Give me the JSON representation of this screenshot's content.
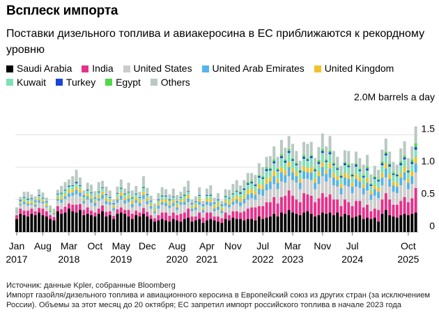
{
  "chart_data": {
    "type": "bar",
    "stacked": true,
    "title": "Всплеск импорта",
    "subtitle": "Поставки дизельного топлива и авиакеросина в ЕС приближаются к рекордному уровню",
    "unit_label": "2.0M barrels a day",
    "ylim": [
      0,
      2.0
    ],
    "yticks": [
      "0",
      "0.5",
      "1.0",
      "1.5"
    ],
    "xticks": [
      {
        "label": "Jan",
        "year": "2017",
        "idx": 0
      },
      {
        "label": "Aug",
        "year": "",
        "idx": 7
      },
      {
        "label": "Mar",
        "year": "2018",
        "idx": 14
      },
      {
        "label": "Oct",
        "year": "",
        "idx": 21
      },
      {
        "label": "May",
        "year": "2019",
        "idx": 28
      },
      {
        "label": "Dec",
        "year": "",
        "idx": 35
      },
      {
        "label": "Aug",
        "year": "2020",
        "idx": 43
      },
      {
        "label": "Apr",
        "year": "2021",
        "idx": 51
      },
      {
        "label": "Nov",
        "year": "",
        "idx": 58
      },
      {
        "label": "Jul",
        "year": "2022",
        "idx": 66
      },
      {
        "label": "Mar",
        "year": "2023",
        "idx": 74
      },
      {
        "label": "Nov",
        "year": "",
        "idx": 82
      },
      {
        "label": "Jul",
        "year": "2024",
        "idx": 90
      },
      {
        "label": "Oct",
        "year": "2025",
        "idx": 105
      }
    ],
    "grid": true,
    "legend_position": "top",
    "series": [
      {
        "name": "Saudi Arabia",
        "color": "#000000",
        "values": [
          0.2,
          0.28,
          0.26,
          0.24,
          0.28,
          0.26,
          0.3,
          0.26,
          0.24,
          0.2,
          0.18,
          0.32,
          0.28,
          0.3,
          0.36,
          0.32,
          0.3,
          0.34,
          0.26,
          0.28,
          0.26,
          0.24,
          0.28,
          0.32,
          0.24,
          0.26,
          0.2,
          0.28,
          0.3,
          0.28,
          0.24,
          0.2,
          0.26,
          0.24,
          0.28,
          0.24,
          0.2,
          0.16,
          0.18,
          0.2,
          0.18,
          0.16,
          0.2,
          0.18,
          0.16,
          0.2,
          0.22,
          0.16,
          0.18,
          0.2,
          0.14,
          0.18,
          0.2,
          0.18,
          0.16,
          0.14,
          0.2,
          0.18,
          0.22,
          0.2,
          0.2,
          0.18,
          0.2,
          0.2,
          0.18,
          0.24,
          0.2,
          0.22,
          0.24,
          0.28,
          0.24,
          0.3,
          0.28,
          0.34,
          0.3,
          0.28,
          0.26,
          0.3,
          0.32,
          0.28,
          0.24,
          0.26,
          0.3,
          0.28,
          0.3,
          0.26,
          0.3,
          0.24,
          0.28,
          0.26,
          0.22,
          0.24,
          0.26,
          0.2,
          0.22,
          0.2,
          0.22,
          0.16,
          0.28,
          0.34,
          0.26,
          0.24,
          0.22,
          0.26,
          0.28,
          0.26,
          0.28,
          0.3
        ]
      },
      {
        "name": "India",
        "color": "#e6318b",
        "values": [
          0.06,
          0.08,
          0.07,
          0.09,
          0.08,
          0.06,
          0.07,
          0.1,
          0.08,
          0.06,
          0.05,
          0.08,
          0.07,
          0.09,
          0.08,
          0.1,
          0.12,
          0.09,
          0.08,
          0.1,
          0.07,
          0.06,
          0.08,
          0.09,
          0.07,
          0.06,
          0.05,
          0.07,
          0.08,
          0.06,
          0.1,
          0.08,
          0.07,
          0.06,
          0.09,
          0.07,
          0.06,
          0.05,
          0.08,
          0.1,
          0.12,
          0.09,
          0.1,
          0.08,
          0.12,
          0.1,
          0.14,
          0.08,
          0.06,
          0.1,
          0.08,
          0.12,
          0.1,
          0.06,
          0.08,
          0.07,
          0.1,
          0.08,
          0.1,
          0.12,
          0.1,
          0.14,
          0.16,
          0.18,
          0.2,
          0.16,
          0.2,
          0.24,
          0.22,
          0.26,
          0.2,
          0.24,
          0.28,
          0.3,
          0.26,
          0.22,
          0.2,
          0.3,
          0.26,
          0.28,
          0.22,
          0.26,
          0.3,
          0.26,
          0.28,
          0.24,
          0.2,
          0.16,
          0.22,
          0.2,
          0.18,
          0.24,
          0.22,
          0.18,
          0.2,
          0.12,
          0.14,
          0.18,
          0.22,
          0.26,
          0.24,
          0.18,
          0.2,
          0.22,
          0.26,
          0.2,
          0.24,
          0.38
        ]
      },
      {
        "name": "United States",
        "color": "#cccccc",
        "values": [
          0.04,
          0.05,
          0.1,
          0.08,
          0.06,
          0.07,
          0.08,
          0.08,
          0.06,
          0.05,
          0.04,
          0.08,
          0.1,
          0.12,
          0.1,
          0.14,
          0.16,
          0.12,
          0.1,
          0.12,
          0.12,
          0.1,
          0.12,
          0.1,
          0.12,
          0.1,
          0.08,
          0.1,
          0.12,
          0.1,
          0.12,
          0.1,
          0.12,
          0.1,
          0.14,
          0.12,
          0.1,
          0.08,
          0.1,
          0.12,
          0.1,
          0.12,
          0.1,
          0.08,
          0.14,
          0.12,
          0.1,
          0.08,
          0.1,
          0.12,
          0.08,
          0.12,
          0.1,
          0.08,
          0.1,
          0.08,
          0.1,
          0.12,
          0.1,
          0.12,
          0.1,
          0.12,
          0.14,
          0.14,
          0.12,
          0.18,
          0.16,
          0.18,
          0.2,
          0.2,
          0.22,
          0.24,
          0.2,
          0.22,
          0.24,
          0.26,
          0.2,
          0.22,
          0.24,
          0.24,
          0.2,
          0.22,
          0.26,
          0.24,
          0.26,
          0.22,
          0.2,
          0.18,
          0.22,
          0.24,
          0.2,
          0.22,
          0.2,
          0.2,
          0.22,
          0.18,
          0.2,
          0.18,
          0.22,
          0.24,
          0.2,
          0.2,
          0.18,
          0.24,
          0.26,
          0.2,
          0.22,
          0.24
        ]
      },
      {
        "name": "United Arab Emirates",
        "color": "#56b4e9",
        "values": [
          0.01,
          0.02,
          0.04,
          0.03,
          0.02,
          0.03,
          0.04,
          0.03,
          0.02,
          0.02,
          0.02,
          0.03,
          0.05,
          0.04,
          0.06,
          0.05,
          0.07,
          0.06,
          0.04,
          0.05,
          0.06,
          0.05,
          0.04,
          0.06,
          0.05,
          0.04,
          0.04,
          0.05,
          0.06,
          0.05,
          0.06,
          0.05,
          0.04,
          0.05,
          0.06,
          0.05,
          0.04,
          0.03,
          0.05,
          0.04,
          0.05,
          0.04,
          0.05,
          0.04,
          0.04,
          0.05,
          0.06,
          0.04,
          0.04,
          0.05,
          0.04,
          0.05,
          0.06,
          0.04,
          0.05,
          0.04,
          0.05,
          0.04,
          0.05,
          0.06,
          0.06,
          0.07,
          0.08,
          0.08,
          0.07,
          0.09,
          0.1,
          0.1,
          0.12,
          0.12,
          0.1,
          0.14,
          0.12,
          0.14,
          0.12,
          0.1,
          0.1,
          0.12,
          0.1,
          0.12,
          0.1,
          0.12,
          0.14,
          0.12,
          0.14,
          0.12,
          0.1,
          0.1,
          0.12,
          0.12,
          0.1,
          0.12,
          0.1,
          0.1,
          0.12,
          0.08,
          0.1,
          0.1,
          0.12,
          0.14,
          0.12,
          0.1,
          0.1,
          0.12,
          0.12,
          0.1,
          0.12,
          0.14
        ]
      },
      {
        "name": "United Kingdom",
        "color": "#f2c12e",
        "values": [
          0.01,
          0.02,
          0.02,
          0.03,
          0.03,
          0.02,
          0.03,
          0.02,
          0.03,
          0.02,
          0.02,
          0.03,
          0.04,
          0.03,
          0.05,
          0.04,
          0.04,
          0.05,
          0.03,
          0.04,
          0.04,
          0.03,
          0.04,
          0.05,
          0.04,
          0.03,
          0.03,
          0.04,
          0.05,
          0.04,
          0.04,
          0.05,
          0.04,
          0.04,
          0.05,
          0.04,
          0.03,
          0.03,
          0.04,
          0.04,
          0.05,
          0.04,
          0.04,
          0.04,
          0.03,
          0.04,
          0.05,
          0.03,
          0.04,
          0.04,
          0.03,
          0.04,
          0.05,
          0.04,
          0.05,
          0.04,
          0.04,
          0.05,
          0.05,
          0.06,
          0.06,
          0.06,
          0.07,
          0.06,
          0.06,
          0.07,
          0.06,
          0.08,
          0.07,
          0.08,
          0.06,
          0.08,
          0.07,
          0.08,
          0.06,
          0.07,
          0.06,
          0.07,
          0.06,
          0.08,
          0.06,
          0.07,
          0.08,
          0.06,
          0.08,
          0.07,
          0.06,
          0.06,
          0.07,
          0.06,
          0.06,
          0.07,
          0.06,
          0.06,
          0.07,
          0.05,
          0.06,
          0.06,
          0.07,
          0.08,
          0.07,
          0.06,
          0.06,
          0.07,
          0.08,
          0.06,
          0.07,
          0.09
        ]
      },
      {
        "name": "Kuwait",
        "color": "#7ee0b8",
        "values": [
          0.02,
          0.03,
          0.04,
          0.03,
          0.04,
          0.03,
          0.04,
          0.03,
          0.03,
          0.02,
          0.02,
          0.04,
          0.05,
          0.06,
          0.05,
          0.06,
          0.06,
          0.05,
          0.04,
          0.05,
          0.05,
          0.04,
          0.05,
          0.06,
          0.05,
          0.04,
          0.03,
          0.05,
          0.06,
          0.05,
          0.05,
          0.04,
          0.05,
          0.04,
          0.06,
          0.05,
          0.04,
          0.03,
          0.04,
          0.05,
          0.05,
          0.04,
          0.05,
          0.04,
          0.04,
          0.05,
          0.05,
          0.04,
          0.04,
          0.05,
          0.04,
          0.05,
          0.05,
          0.04,
          0.05,
          0.04,
          0.05,
          0.05,
          0.06,
          0.06,
          0.07,
          0.08,
          0.08,
          0.09,
          0.08,
          0.1,
          0.1,
          0.12,
          0.1,
          0.12,
          0.12,
          0.14,
          0.12,
          0.14,
          0.12,
          0.1,
          0.1,
          0.12,
          0.12,
          0.14,
          0.12,
          0.12,
          0.14,
          0.12,
          0.14,
          0.12,
          0.1,
          0.1,
          0.12,
          0.12,
          0.1,
          0.12,
          0.1,
          0.1,
          0.12,
          0.08,
          0.1,
          0.1,
          0.12,
          0.12,
          0.12,
          0.1,
          0.1,
          0.12,
          0.12,
          0.1,
          0.12,
          0.12
        ]
      },
      {
        "name": "Turkey",
        "color": "#1a44d6",
        "values": [
          0.0,
          0.01,
          0.01,
          0.01,
          0.01,
          0.01,
          0.01,
          0.01,
          0.01,
          0.0,
          0.0,
          0.01,
          0.01,
          0.01,
          0.01,
          0.01,
          0.02,
          0.01,
          0.01,
          0.01,
          0.01,
          0.01,
          0.01,
          0.01,
          0.01,
          0.01,
          0.01,
          0.01,
          0.01,
          0.01,
          0.01,
          0.01,
          0.01,
          0.01,
          0.01,
          0.01,
          0.01,
          0.0,
          0.01,
          0.01,
          0.01,
          0.01,
          0.01,
          0.01,
          0.01,
          0.01,
          0.01,
          0.01,
          0.01,
          0.01,
          0.01,
          0.01,
          0.01,
          0.01,
          0.01,
          0.01,
          0.01,
          0.01,
          0.01,
          0.01,
          0.02,
          0.02,
          0.02,
          0.02,
          0.02,
          0.02,
          0.02,
          0.03,
          0.02,
          0.03,
          0.02,
          0.03,
          0.03,
          0.03,
          0.02,
          0.02,
          0.02,
          0.03,
          0.02,
          0.03,
          0.02,
          0.03,
          0.03,
          0.02,
          0.03,
          0.02,
          0.02,
          0.02,
          0.03,
          0.02,
          0.02,
          0.03,
          0.02,
          0.02,
          0.03,
          0.02,
          0.02,
          0.02,
          0.03,
          0.03,
          0.03,
          0.02,
          0.02,
          0.03,
          0.03,
          0.02,
          0.03,
          0.04
        ]
      },
      {
        "name": "Egypt",
        "color": "#4fd84a",
        "values": [
          0.0,
          0.0,
          0.0,
          0.01,
          0.0,
          0.0,
          0.0,
          0.0,
          0.0,
          0.0,
          0.0,
          0.0,
          0.01,
          0.0,
          0.01,
          0.0,
          0.01,
          0.0,
          0.0,
          0.01,
          0.0,
          0.0,
          0.01,
          0.0,
          0.0,
          0.0,
          0.0,
          0.0,
          0.01,
          0.0,
          0.0,
          0.01,
          0.0,
          0.0,
          0.01,
          0.0,
          0.0,
          0.0,
          0.0,
          0.01,
          0.0,
          0.0,
          0.0,
          0.0,
          0.0,
          0.01,
          0.0,
          0.0,
          0.0,
          0.0,
          0.0,
          0.0,
          0.01,
          0.0,
          0.0,
          0.0,
          0.01,
          0.0,
          0.01,
          0.01,
          0.01,
          0.01,
          0.02,
          0.02,
          0.01,
          0.02,
          0.02,
          0.03,
          0.02,
          0.03,
          0.02,
          0.03,
          0.02,
          0.03,
          0.02,
          0.02,
          0.02,
          0.03,
          0.02,
          0.02,
          0.02,
          0.03,
          0.03,
          0.02,
          0.03,
          0.02,
          0.02,
          0.02,
          0.02,
          0.03,
          0.02,
          0.02,
          0.02,
          0.02,
          0.03,
          0.02,
          0.02,
          0.02,
          0.03,
          0.03,
          0.02,
          0.02,
          0.02,
          0.03,
          0.03,
          0.02,
          0.04,
          0.06
        ]
      },
      {
        "name": "Others",
        "color": "#b8c9c1",
        "values": [
          0.04,
          0.05,
          0.08,
          0.1,
          0.06,
          0.07,
          0.09,
          0.08,
          0.06,
          0.04,
          0.03,
          0.06,
          0.1,
          0.12,
          0.09,
          0.14,
          0.18,
          0.12,
          0.08,
          0.1,
          0.12,
          0.1,
          0.14,
          0.1,
          0.12,
          0.1,
          0.06,
          0.1,
          0.12,
          0.08,
          0.14,
          0.1,
          0.12,
          0.08,
          0.16,
          0.1,
          0.08,
          0.06,
          0.1,
          0.12,
          0.1,
          0.08,
          0.12,
          0.1,
          0.08,
          0.12,
          0.16,
          0.06,
          0.08,
          0.12,
          0.06,
          0.1,
          0.14,
          0.08,
          0.1,
          0.06,
          0.1,
          0.12,
          0.14,
          0.16,
          0.1,
          0.12,
          0.14,
          0.12,
          0.14,
          0.18,
          0.14,
          0.16,
          0.18,
          0.2,
          0.18,
          0.22,
          0.18,
          0.2,
          0.22,
          0.18,
          0.14,
          0.2,
          0.22,
          0.2,
          0.16,
          0.2,
          0.24,
          0.2,
          0.22,
          0.18,
          0.16,
          0.14,
          0.18,
          0.2,
          0.16,
          0.18,
          0.16,
          0.16,
          0.18,
          0.14,
          0.16,
          0.14,
          0.18,
          0.2,
          0.18,
          0.16,
          0.14,
          0.2,
          0.22,
          0.18,
          0.2,
          0.26
        ]
      }
    ]
  },
  "footer": {
    "source": "Источник: данные Kpler, собранные Bloomberg",
    "note": "Импорт газойля/дизельного топлива и авиационного керосина в Европейский союз из других стран (за исключением России). Объемы за этот месяц до 20 октября; ЕС запретил импорт российского топлива в начале 2023 года"
  }
}
